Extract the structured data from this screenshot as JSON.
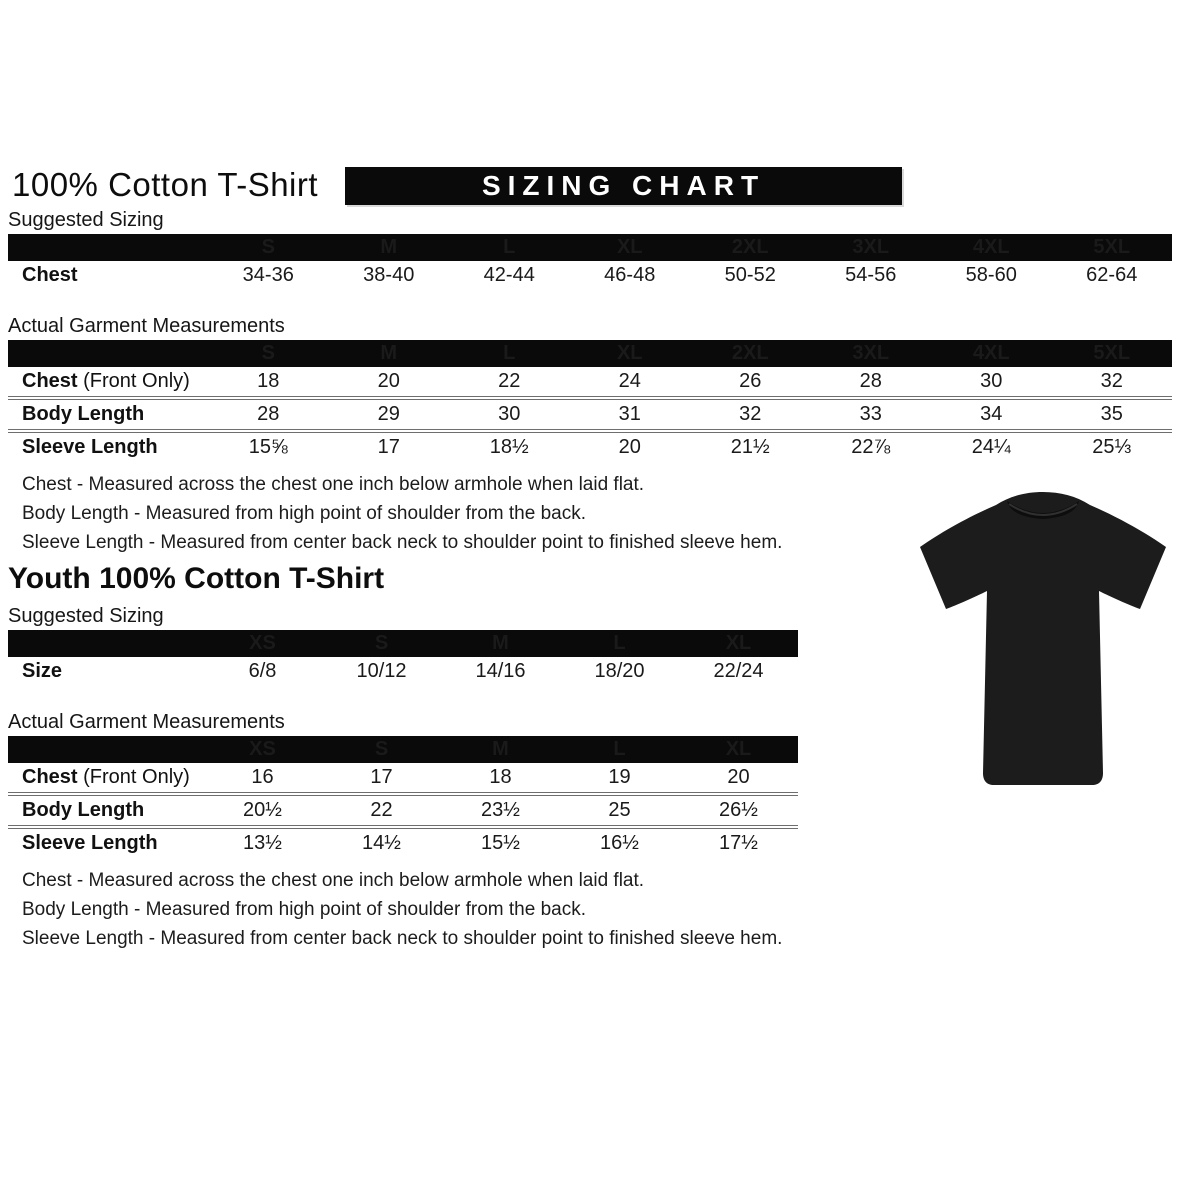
{
  "adult": {
    "title": "100% Cotton T-Shirt",
    "banner_title": "SIZING CHART",
    "suggested": {
      "heading": "Suggested Sizing",
      "columns": [
        "S",
        "M",
        "L",
        "XL",
        "2XL",
        "3XL",
        "4XL",
        "5XL"
      ],
      "rows": [
        {
          "label": "Chest",
          "suffix": "",
          "values": [
            "34-36",
            "38-40",
            "42-44",
            "46-48",
            "50-52",
            "54-56",
            "58-60",
            "62-64"
          ]
        }
      ]
    },
    "actual": {
      "heading": "Actual Garment Measurements",
      "columns": [
        "S",
        "M",
        "L",
        "XL",
        "2XL",
        "3XL",
        "4XL",
        "5XL"
      ],
      "rows": [
        {
          "label": "Chest",
          "suffix": " (Front Only)",
          "values": [
            "18",
            "20",
            "22",
            "24",
            "26",
            "28",
            "30",
            "32"
          ]
        },
        {
          "label": "Body Length",
          "suffix": "",
          "values": [
            "28",
            "29",
            "30",
            "31",
            "32",
            "33",
            "34",
            "35"
          ]
        },
        {
          "label": "Sleeve Length",
          "suffix": "",
          "values": [
            "15⅝",
            "17",
            "18½",
            "20",
            "21½",
            "22⅞",
            "24¼",
            "25⅓"
          ]
        }
      ]
    },
    "notes": [
      "Chest - Measured across the chest one inch below armhole when laid flat.",
      "Body Length - Measured from high point of shoulder from the back.",
      "Sleeve Length - Measured from center back neck to shoulder point to finished sleeve hem."
    ]
  },
  "youth": {
    "title": "Youth 100% Cotton T-Shirt",
    "suggested": {
      "heading": "Suggested Sizing",
      "columns": [
        "XS",
        "S",
        "M",
        "L",
        "XL"
      ],
      "rows": [
        {
          "label": "Size",
          "suffix": "",
          "values": [
            "6/8",
            "10/12",
            "14/16",
            "18/20",
            "22/24"
          ]
        }
      ]
    },
    "actual": {
      "heading": "Actual Garment Measurements",
      "columns": [
        "XS",
        "S",
        "M",
        "L",
        "XL"
      ],
      "rows": [
        {
          "label": "Chest",
          "suffix": " (Front Only)",
          "values": [
            "16",
            "17",
            "18",
            "19",
            "20"
          ]
        },
        {
          "label": "Body Length",
          "suffix": "",
          "values": [
            "20½",
            "22",
            "23½",
            "25",
            "26½"
          ]
        },
        {
          "label": "Sleeve Length",
          "suffix": "",
          "values": [
            "13½",
            "14½",
            "15½",
            "16½",
            "17½"
          ]
        }
      ]
    },
    "notes": [
      "Chest - Measured across the chest one inch below armhole when laid flat.",
      "Body Length - Measured from high point of shoulder from the back.",
      "Sleeve Length - Measured from center back neck to shoulder point to finished sleeve hem."
    ]
  },
  "tshirt": {
    "alt": "black short-sleeve t-shirt product photo",
    "color": "#1c1c1c",
    "collar_color": "#0d0d0d"
  },
  "colors": {
    "table_header_bg": "#0a0a0a",
    "table_header_text": "#ffffff",
    "body_text": "#111111",
    "row_separator": "#6e6e6e",
    "background": "#ffffff"
  }
}
